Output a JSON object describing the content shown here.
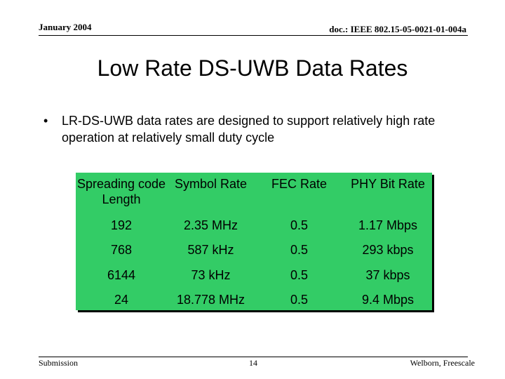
{
  "header": {
    "date": "January 2004",
    "doc_id": "doc.: IEEE 802.15-05-0021-01-004a"
  },
  "slide": {
    "title": "Low Rate DS-UWB Data Rates",
    "bullet": "LR-DS-UWB data rates are designed to support relatively high rate operation at relatively small duty cycle"
  },
  "table": {
    "background_color": "#33cc66",
    "columns": [
      "Spreading code Length",
      "Symbol Rate",
      "FEC Rate",
      "PHY Bit Rate"
    ],
    "rows": [
      [
        "192",
        "2.35 MHz",
        "0.5",
        "1.17 Mbps"
      ],
      [
        "768",
        "587 kHz",
        "0.5",
        "293 kbps"
      ],
      [
        "6144",
        "73 kHz",
        "0.5",
        "37 kbps"
      ],
      [
        "24",
        "18.778 MHz",
        "0.5",
        "9.4 Mbps"
      ]
    ]
  },
  "footer": {
    "left": "Submission",
    "page": "14",
    "right": "Welborn, Freescale"
  }
}
